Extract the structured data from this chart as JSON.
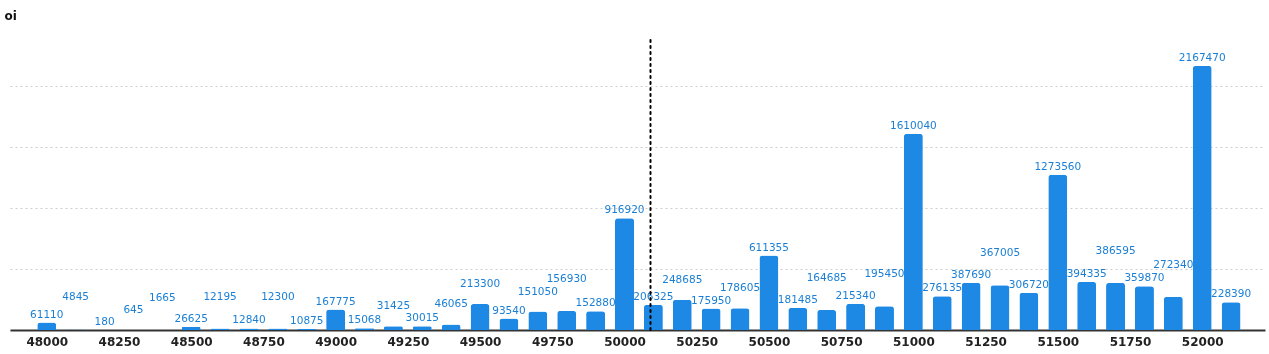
{
  "chart_data": {
    "type": "bar",
    "ylabel": "oi",
    "x": [
      48000,
      48100,
      48200,
      48300,
      48400,
      48500,
      48600,
      48700,
      48800,
      48900,
      49000,
      49100,
      49200,
      49300,
      49400,
      49500,
      49600,
      49700,
      49800,
      49900,
      50000,
      50100,
      50200,
      50300,
      50400,
      50500,
      50600,
      50700,
      50800,
      50900,
      51000,
      51100,
      51200,
      51300,
      51400,
      51500,
      51600,
      51700,
      51800,
      51900,
      52000,
      52100
    ],
    "values": [
      61110,
      4845,
      180,
      645,
      1665,
      26625,
      12195,
      12840,
      12300,
      10875,
      167775,
      15068,
      31425,
      30015,
      46065,
      213300,
      93540,
      151050,
      156930,
      152880,
      916920,
      206325,
      248685,
      175950,
      178605,
      611355,
      181485,
      164685,
      215340,
      195450,
      1610040,
      276135,
      387690,
      367005,
      306720,
      1273560,
      394335,
      386595,
      359870,
      272340,
      2167470,
      228390
    ],
    "color": "#1e88e5",
    "data_labels": true,
    "xlim": [
      47890,
      52200
    ],
    "xticks": [
      48000,
      48250,
      48500,
      48750,
      49000,
      49250,
      49500,
      49750,
      50000,
      50250,
      50500,
      50750,
      51000,
      51250,
      51500,
      51750,
      52000
    ],
    "ylim": [
      0,
      2380000
    ],
    "yticks": [
      {
        "value": 0,
        "label": null
      },
      {
        "value": 500000,
        "label": null
      },
      {
        "value": 1000000,
        "label": null
      },
      {
        "value": 1500000,
        "label": null
      },
      {
        "value": 2000000,
        "label": null
      }
    ],
    "grid": "y",
    "tick_labels": "x",
    "ref_lines": [
      {
        "axis": "x",
        "value": 50090,
        "line_style": "dotted",
        "color": "#000000"
      }
    ]
  }
}
